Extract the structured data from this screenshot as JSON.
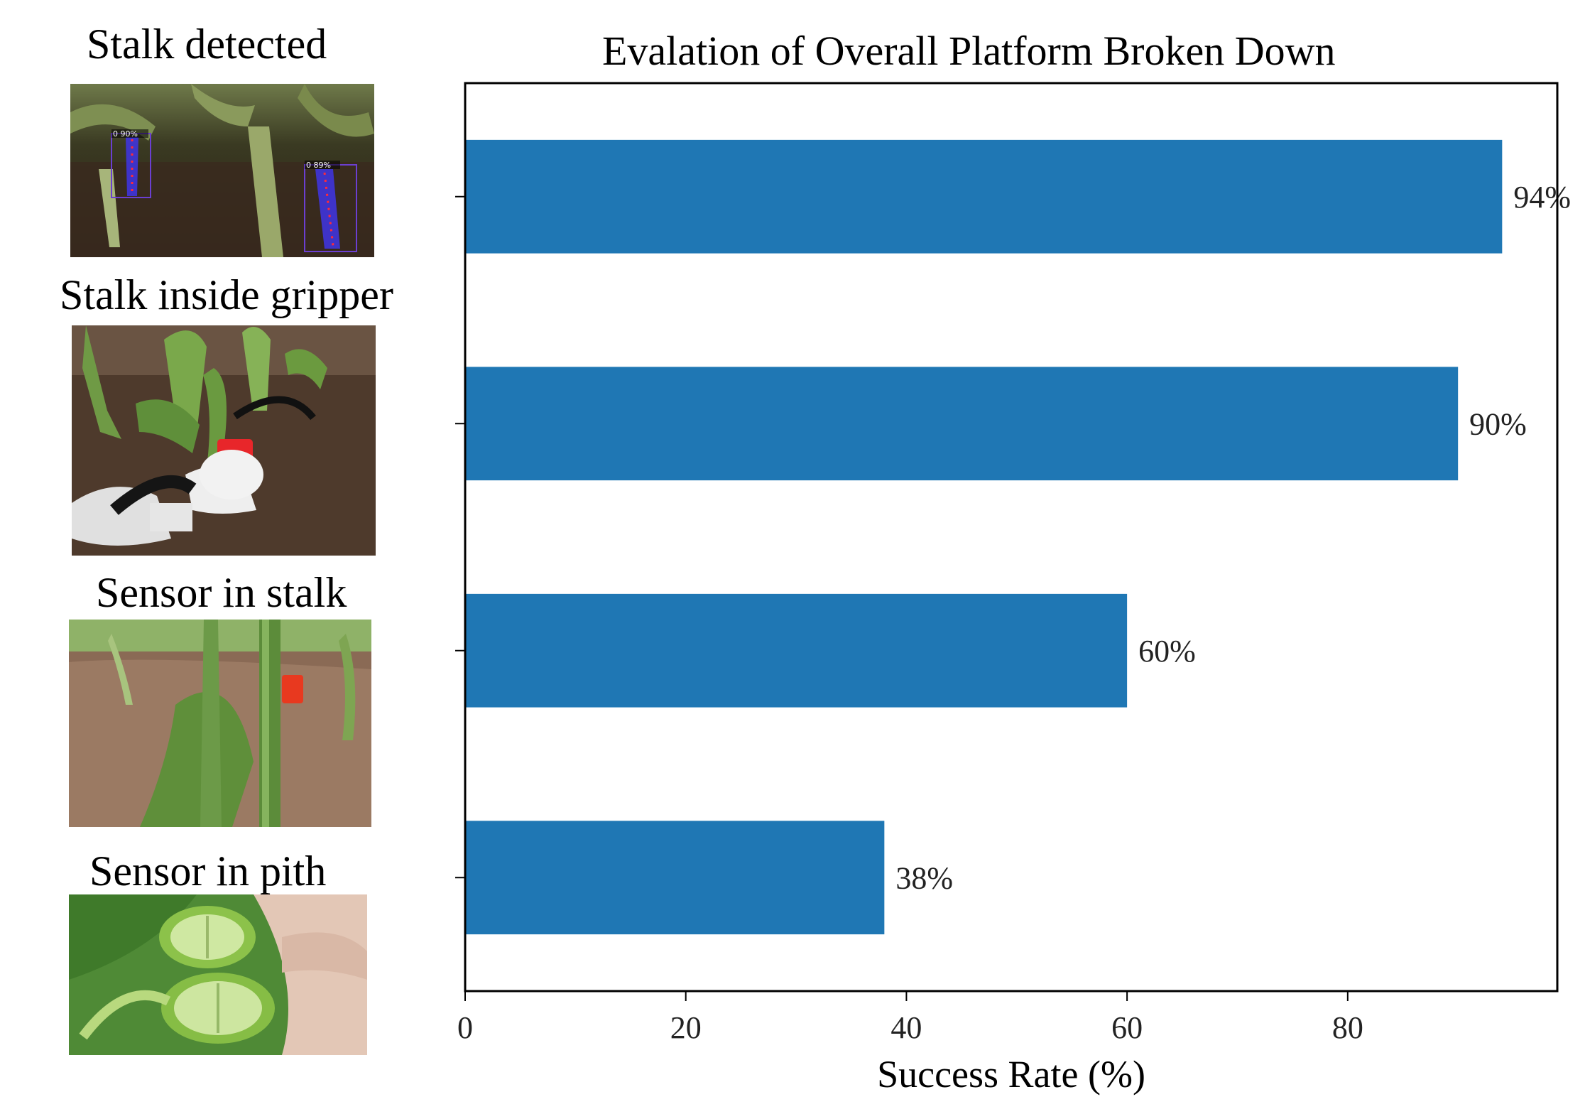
{
  "panels": [
    {
      "label": "Stalk detected"
    },
    {
      "label": "Stalk inside gripper"
    },
    {
      "label": "Sensor in stalk"
    },
    {
      "label": "Sensor in pith"
    }
  ],
  "detections": [
    {
      "score": "0 90%"
    },
    {
      "score": "0 89%"
    }
  ],
  "chart_data": {
    "type": "bar",
    "orientation": "horizontal",
    "title": "Evalation of Overall Platform Broken Down",
    "xlabel": "Success Rate (%)",
    "ylabel": "",
    "xlim": [
      0,
      99
    ],
    "xticks": [
      0,
      20,
      40,
      60,
      80
    ],
    "values": [
      94,
      90,
      60,
      38
    ],
    "value_labels": [
      "94%",
      "90%",
      "60%",
      "38%"
    ],
    "bar_color": "#1f77b4",
    "grid": false
  }
}
